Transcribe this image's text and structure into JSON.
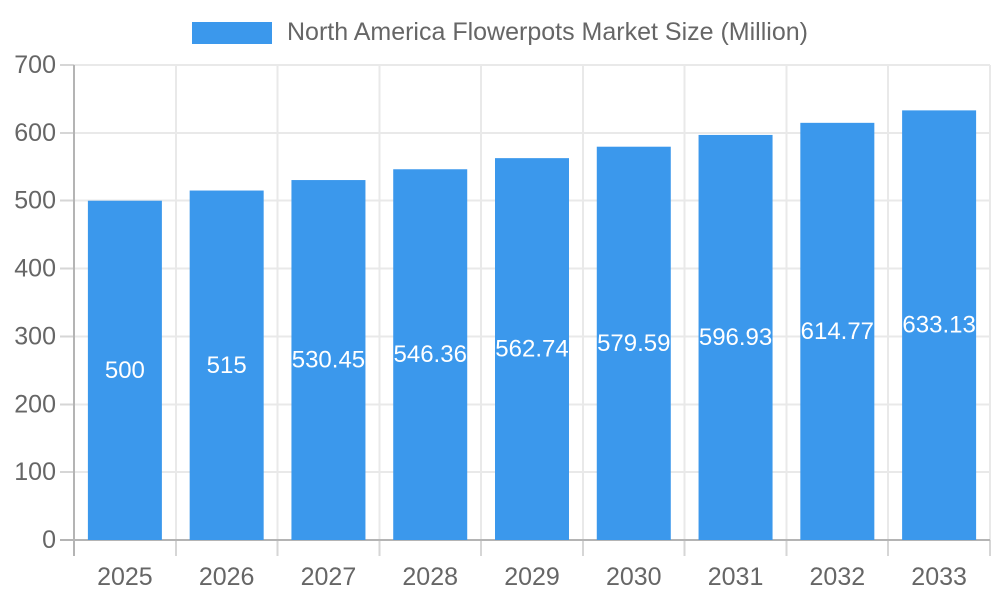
{
  "legend": {
    "label": "North America Flowerpots Market Size (Million)"
  },
  "chart_data": {
    "type": "bar",
    "title": "North America Flowerpots Market Size (Million)",
    "categories": [
      "2025",
      "2026",
      "2027",
      "2028",
      "2029",
      "2030",
      "2031",
      "2032",
      "2033"
    ],
    "values": [
      500,
      515,
      530.45,
      546.36,
      562.74,
      579.59,
      596.93,
      614.77,
      633.13
    ],
    "value_labels": [
      "500",
      "515",
      "530.45",
      "546.36",
      "562.74",
      "579.59",
      "596.93",
      "614.77",
      "633.13"
    ],
    "xlabel": "",
    "ylabel": "",
    "ylim": [
      0,
      700
    ],
    "ytick_step": 100,
    "grid": true,
    "legend_position": "top",
    "value_label_position": "center-of-bar",
    "colors": {
      "bar": "#3B98EC",
      "value_label": "#FFFFFF",
      "axis_text": "#666666",
      "grid_line": "#E9E9E9",
      "axis_line": "#B4B4B4",
      "tick_line": "#D6D6D6"
    }
  }
}
